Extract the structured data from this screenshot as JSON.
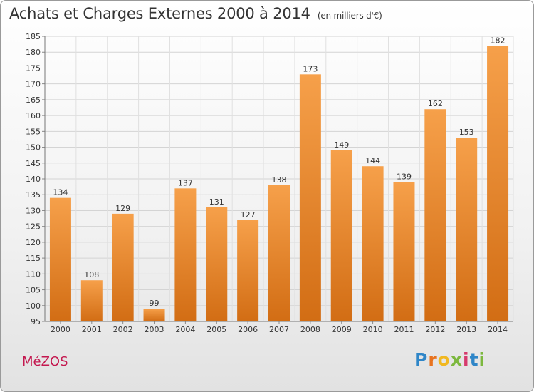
{
  "title": "Achats et Charges Externes 2000 à 2014",
  "subtitle": "(en milliers d'€)",
  "commune": "MéZOS",
  "brand": {
    "letters": [
      "P",
      "r",
      "o",
      "x",
      "i",
      "t",
      "i"
    ],
    "colors": [
      "#2f86c8",
      "#e8731f",
      "#f1b820",
      "#7cb83e",
      "#d63a6d",
      "#2f86c8",
      "#7cb83e"
    ]
  },
  "chart_data": {
    "type": "bar",
    "categories": [
      "2000",
      "2001",
      "2002",
      "2003",
      "2004",
      "2005",
      "2006",
      "2007",
      "2008",
      "2009",
      "2010",
      "2011",
      "2012",
      "2013",
      "2014"
    ],
    "values": [
      134,
      108,
      129,
      99,
      137,
      131,
      127,
      138,
      173,
      149,
      144,
      139,
      162,
      153,
      182
    ],
    "ylim": [
      95,
      185
    ],
    "yticks": [
      95,
      100,
      105,
      110,
      115,
      120,
      125,
      130,
      135,
      140,
      145,
      150,
      155,
      160,
      165,
      170,
      175,
      180,
      185
    ],
    "grid": true,
    "bar_color_top": "#f6a04a",
    "bar_color_bottom": "#d26d14"
  }
}
